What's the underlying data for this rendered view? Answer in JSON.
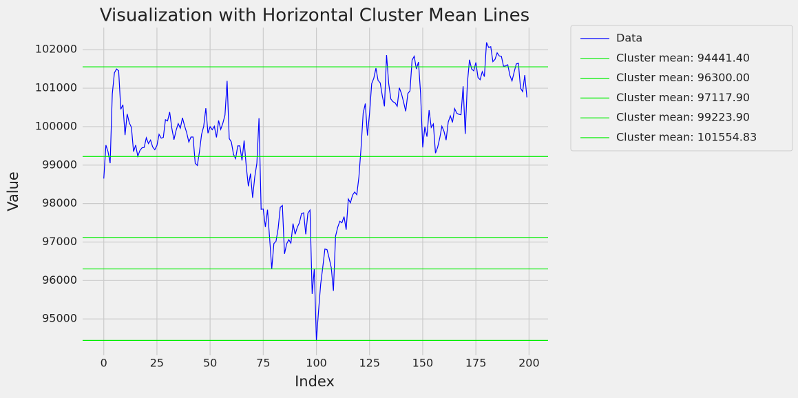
{
  "chart_data": {
    "type": "line",
    "title": "Visualization with Horizontal Cluster Mean Lines",
    "xlabel": "Index",
    "ylabel": "Value",
    "series": [
      {
        "name": "Data",
        "color": "#0000ff",
        "values": [
          98650,
          99520,
          99350,
          99050,
          100850,
          101400,
          101500,
          101450,
          100450,
          100570,
          99780,
          100330,
          100100,
          99980,
          99350,
          99520,
          99230,
          99380,
          99450,
          99460,
          99710,
          99560,
          99650,
          99470,
          99400,
          99510,
          99800,
          99700,
          99720,
          100180,
          100150,
          100380,
          99960,
          99660,
          99900,
          100080,
          99960,
          100230,
          100020,
          99840,
          99600,
          99730,
          99730,
          99050,
          98990,
          99350,
          99800,
          100010,
          100480,
          99830,
          100000,
          99920,
          100010,
          99720,
          100160,
          99930,
          100090,
          100300,
          101190,
          99690,
          99600,
          99280,
          99170,
          99500,
          99500,
          99120,
          99640,
          98970,
          98450,
          98780,
          98150,
          98690,
          99050,
          100220,
          97850,
          97860,
          97390,
          97840,
          97100,
          96300,
          96960,
          97020,
          97350,
          97900,
          97950,
          96690,
          96950,
          97060,
          96970,
          97480,
          97200,
          97380,
          97500,
          97740,
          97760,
          97200,
          97750,
          97830,
          95650,
          96300,
          94441,
          95200,
          95900,
          96350,
          96820,
          96800,
          96580,
          96330,
          95730,
          97150,
          97380,
          97540,
          97500,
          97660,
          97320,
          98120,
          98020,
          98220,
          98300,
          98230,
          98700,
          99450,
          100350,
          100600,
          99770,
          100350,
          101120,
          101260,
          101520,
          101200,
          101140,
          100800,
          100530,
          101860,
          101120,
          100720,
          100650,
          100620,
          100530,
          101010,
          100860,
          100640,
          100400,
          100860,
          100930,
          101730,
          101830,
          101500,
          101680,
          100860,
          99460,
          100000,
          99740,
          100430,
          99980,
          100070,
          99310,
          99460,
          99700,
          100010,
          99880,
          99650,
          100120,
          100280,
          100110,
          100470,
          100350,
          100320,
          100310,
          101050,
          99810,
          101130,
          101740,
          101500,
          101450,
          101670,
          101280,
          101220,
          101430,
          101300,
          102190,
          102060,
          102080,
          101690,
          101750,
          101920,
          101840,
          101830,
          101570,
          101580,
          101610,
          101330,
          101190,
          101420,
          101630,
          101650,
          101000,
          100910,
          101340,
          100760
        ]
      }
    ],
    "hlines": [
      {
        "name": "Cluster mean: 94441.40",
        "value": 94441.4,
        "color": "#00ee00"
      },
      {
        "name": "Cluster mean: 96300.00",
        "value": 96300.0,
        "color": "#00ee00"
      },
      {
        "name": "Cluster mean: 97117.90",
        "value": 97117.9,
        "color": "#00ee00"
      },
      {
        "name": "Cluster mean: 99223.90",
        "value": 99223.9,
        "color": "#00ee00"
      },
      {
        "name": "Cluster mean: 101554.83",
        "value": 101554.83,
        "color": "#00ee00"
      }
    ],
    "xlim": [
      -9.95,
      208.95
    ],
    "xticks": [
      0,
      25,
      50,
      75,
      100,
      125,
      150,
      175,
      200
    ],
    "ylim": [
      94054,
      102577
    ],
    "yticks": [
      95000,
      96000,
      97000,
      98000,
      99000,
      100000,
      101000,
      102000
    ],
    "grid": true,
    "legend": "outside-right"
  }
}
